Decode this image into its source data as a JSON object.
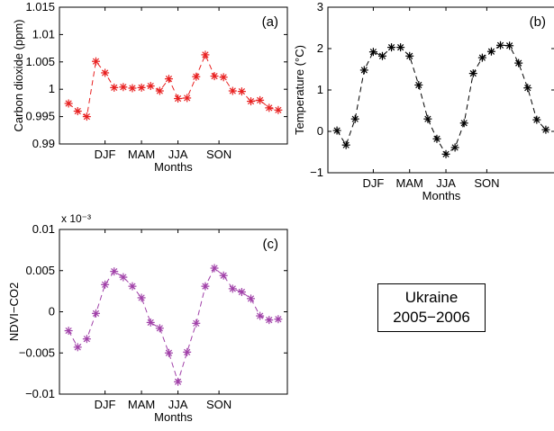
{
  "chart_data": [
    {
      "type": "line",
      "panel_label": "(a)",
      "xlabel": "Months",
      "ylabel": "Carbon dioxide (ppm)",
      "ylim": [
        0.99,
        1.015
      ],
      "yticks": [
        "0.99",
        "0.995",
        "1",
        "1.005",
        "1.01",
        "1.015"
      ],
      "xtick_labels": [
        "DJF",
        "MAM",
        "JJA",
        "SON"
      ],
      "color": "#e82020",
      "x": [
        1,
        2,
        3,
        4,
        5,
        6,
        7,
        8,
        9,
        10,
        11,
        12,
        13,
        14,
        15,
        16,
        17,
        18,
        19,
        20,
        21,
        22,
        23,
        24
      ],
      "values": [
        0.9974,
        0.996,
        0.995,
        1.0051,
        1.003,
        1.0003,
        1.0004,
        1.0002,
        1.0003,
        1.0006,
        0.9997,
        1.0019,
        0.9983,
        0.9984,
        1.0023,
        1.0063,
        1.0024,
        1.0022,
        0.9997,
        0.9996,
        0.9978,
        0.998,
        0.9966,
        0.9962
      ]
    },
    {
      "type": "line",
      "panel_label": "(b)",
      "xlabel": "Months",
      "ylabel": "Temperature (°C)",
      "ylim": [
        -1,
        3
      ],
      "yticks": [
        "−1",
        "0",
        "1",
        "2",
        "3"
      ],
      "xtick_labels": [
        "DJF",
        "MAM",
        "JJA",
        "SON"
      ],
      "color": "#000000",
      "x": [
        1,
        2,
        3,
        4,
        5,
        6,
        7,
        8,
        9,
        10,
        11,
        12,
        13,
        14,
        15,
        16,
        17,
        18,
        19,
        20,
        21,
        22,
        23,
        24
      ],
      "values": [
        0.02,
        -0.33,
        0.3,
        1.48,
        1.92,
        1.82,
        2.03,
        2.03,
        1.82,
        1.12,
        0.3,
        -0.18,
        -0.55,
        -0.39,
        0.2,
        1.4,
        1.78,
        1.93,
        2.08,
        2.07,
        1.65,
        1.05,
        0.28,
        0.04
      ]
    },
    {
      "type": "line",
      "panel_label": "(c)",
      "xlabel": "Months",
      "ylabel": "NDVI−CO2",
      "ylim": [
        -0.01,
        0.01
      ],
      "yticks": [
        "−0.01",
        "−0.005",
        "0",
        "0.005",
        "0.01"
      ],
      "exponent": "x 10⁻³",
      "xtick_labels": [
        "DJF",
        "MAM",
        "JJA",
        "SON"
      ],
      "color": "#a040a8",
      "x": [
        1,
        2,
        3,
        4,
        5,
        6,
        7,
        8,
        9,
        10,
        11,
        12,
        13,
        14,
        15,
        16,
        17,
        18,
        19,
        20,
        21,
        22,
        23,
        24
      ],
      "values": [
        -0.0023,
        -0.0043,
        -0.0033,
        -0.0002,
        0.0033,
        0.0049,
        0.0042,
        0.0031,
        0.0017,
        -0.0013,
        -0.002,
        -0.005,
        -0.0085,
        -0.0049,
        -0.0014,
        0.0031,
        0.0053,
        0.0044,
        0.0028,
        0.0024,
        0.0016,
        -0.0005,
        -0.001,
        -0.0009
      ]
    }
  ],
  "legend": {
    "line1": "Ukraine",
    "line2": "2005−2006"
  }
}
